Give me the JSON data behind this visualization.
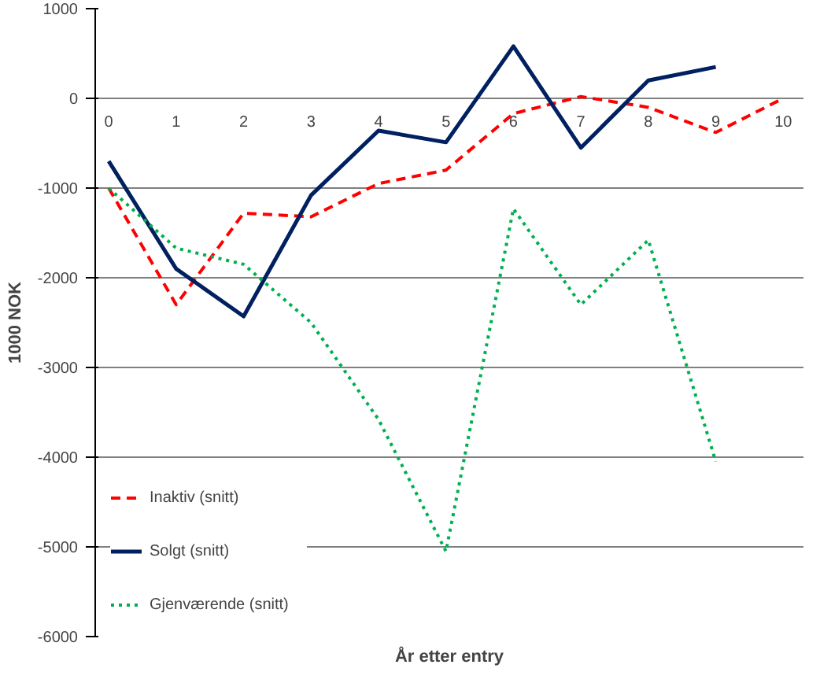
{
  "chart_data": {
    "type": "line",
    "xlabel": "År etter entry",
    "ylabel": "1000 NOK",
    "x": [
      0,
      1,
      2,
      3,
      4,
      5,
      6,
      7,
      8,
      9,
      10
    ],
    "series": [
      {
        "name": "Inaktiv (snitt)",
        "color": "#ff0000",
        "line_style": "dashed",
        "values": [
          -1000,
          -2300,
          -1280,
          -1320,
          -950,
          -800,
          -170,
          20,
          -100,
          -380,
          0
        ]
      },
      {
        "name": "Solgt (snitt)",
        "color": "#002060",
        "line_style": "solid",
        "values": [
          -700,
          -1900,
          -2430,
          -1080,
          -360,
          -490,
          580,
          -550,
          200,
          350,
          null
        ]
      },
      {
        "name": "Gjenværende (snitt)",
        "color": "#00b050",
        "line_style": "dotted",
        "values": [
          -1000,
          -1670,
          -1850,
          -2500,
          -3580,
          -5050,
          -1230,
          -2300,
          -1580,
          -4050,
          null
        ]
      }
    ],
    "xlim": [
      -0.2,
      10.3
    ],
    "xticks": [
      0,
      1,
      2,
      3,
      4,
      5,
      6,
      7,
      8,
      9,
      10
    ],
    "ylim": [
      -6000,
      1000
    ],
    "yticks": [
      -6000,
      -5000,
      -4000,
      -3000,
      -2000,
      -1000,
      0,
      1000
    ],
    "grid": "y",
    "legend": "bottom left",
    "marker": "none"
  }
}
